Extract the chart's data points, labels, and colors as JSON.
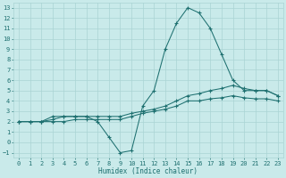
{
  "xlabel": "Humidex (Indice chaleur)",
  "bg_color": "#c9eaea",
  "grid_color": "#aad4d4",
  "line_color": "#1e7070",
  "xlim": [
    -0.5,
    23.5
  ],
  "ylim": [
    -1.5,
    13.5
  ],
  "xticks": [
    0,
    1,
    2,
    3,
    4,
    5,
    6,
    7,
    8,
    9,
    10,
    11,
    12,
    13,
    14,
    15,
    16,
    17,
    18,
    19,
    20,
    21,
    22,
    23
  ],
  "yticks": [
    -1,
    0,
    1,
    2,
    3,
    4,
    5,
    6,
    7,
    8,
    9,
    10,
    11,
    12,
    13
  ],
  "line1_x": [
    0,
    1,
    2,
    3,
    4,
    5,
    6,
    7,
    8,
    9,
    10,
    11,
    12,
    13,
    14,
    15,
    16,
    17,
    18,
    19,
    20,
    21,
    22,
    23
  ],
  "line1_y": [
    2.0,
    2.0,
    2.0,
    2.5,
    2.5,
    2.5,
    2.5,
    2.0,
    0.5,
    -1.0,
    -0.8,
    3.5,
    5.0,
    9.0,
    11.5,
    13.0,
    12.5,
    11.0,
    8.5,
    6.0,
    5.0,
    5.0,
    5.0,
    4.5
  ],
  "line2_x": [
    0,
    1,
    2,
    3,
    4,
    5,
    6,
    7,
    8,
    9,
    10,
    11,
    12,
    13,
    14,
    15,
    16,
    17,
    18,
    19,
    20,
    21,
    22,
    23
  ],
  "line2_y": [
    2.0,
    2.0,
    2.0,
    2.2,
    2.5,
    2.5,
    2.5,
    2.5,
    2.5,
    2.5,
    2.8,
    3.0,
    3.2,
    3.5,
    4.0,
    4.5,
    4.7,
    5.0,
    5.2,
    5.5,
    5.2,
    5.0,
    5.0,
    4.5
  ],
  "line3_x": [
    0,
    1,
    2,
    3,
    4,
    5,
    6,
    7,
    8,
    9,
    10,
    11,
    12,
    13,
    14,
    15,
    16,
    17,
    18,
    19,
    20,
    21,
    22,
    23
  ],
  "line3_y": [
    2.0,
    2.0,
    2.0,
    2.0,
    2.0,
    2.2,
    2.2,
    2.2,
    2.2,
    2.2,
    2.5,
    2.8,
    3.0,
    3.2,
    3.5,
    4.0,
    4.0,
    4.2,
    4.3,
    4.5,
    4.3,
    4.2,
    4.2,
    4.0
  ]
}
